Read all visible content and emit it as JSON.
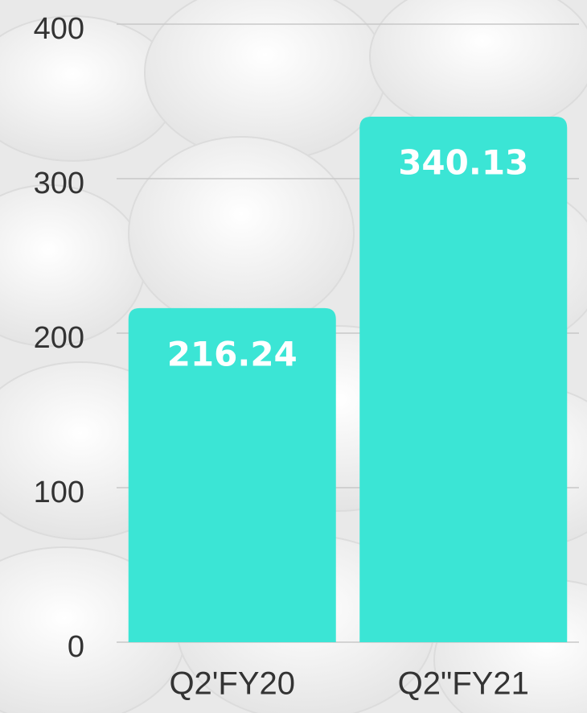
{
  "chart_data": {
    "type": "bar",
    "categories": [
      "Q2'FY20",
      "Q2\"FY21"
    ],
    "values": [
      216.24,
      340.13
    ],
    "color": "#3be5d5",
    "ylim": [
      0,
      400
    ],
    "yticks": [
      0,
      100,
      200,
      300,
      400
    ],
    "grid": true
  }
}
